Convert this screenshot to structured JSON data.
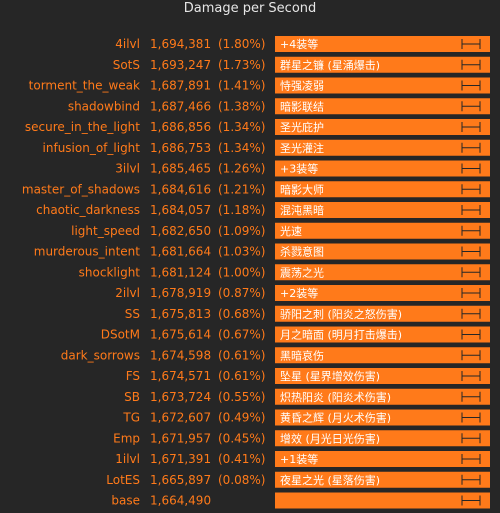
{
  "chart_data": {
    "type": "bar",
    "orientation": "horizontal",
    "title": "Damage per Second",
    "grid": false,
    "legend": "none",
    "colors": {
      "background": "#262626",
      "bar": "#ff7a1a",
      "label": "#ff7a1a",
      "title": "#e6e6e6",
      "bar_text": "#ffffff"
    },
    "rows": [
      {
        "name": "4ilvl",
        "value": 1694381,
        "value_label": "1,694,381",
        "pct_label": "(1.80%)",
        "bar_label": "+4装等"
      },
      {
        "name": "SotS",
        "value": 1693247,
        "value_label": "1,693,247",
        "pct_label": "(1.73%)",
        "bar_label": "群星之镰 (星涌爆击)"
      },
      {
        "name": "torment_the_weak",
        "value": 1687891,
        "value_label": "1,687,891",
        "pct_label": "(1.41%)",
        "bar_label": "恃强凌弱"
      },
      {
        "name": "shadowbind",
        "value": 1687466,
        "value_label": "1,687,466",
        "pct_label": "(1.38%)",
        "bar_label": "暗影联结"
      },
      {
        "name": "secure_in_the_light",
        "value": 1686856,
        "value_label": "1,686,856",
        "pct_label": "(1.34%)",
        "bar_label": "圣光庇护"
      },
      {
        "name": "infusion_of_light",
        "value": 1686753,
        "value_label": "1,686,753",
        "pct_label": "(1.34%)",
        "bar_label": "圣光灌注"
      },
      {
        "name": "3ilvl",
        "value": 1685465,
        "value_label": "1,685,465",
        "pct_label": "(1.26%)",
        "bar_label": "+3装等"
      },
      {
        "name": "master_of_shadows",
        "value": 1684616,
        "value_label": "1,684,616",
        "pct_label": "(1.21%)",
        "bar_label": "暗影大师"
      },
      {
        "name": "chaotic_darkness",
        "value": 1684057,
        "value_label": "1,684,057",
        "pct_label": "(1.18%)",
        "bar_label": "混沌黑暗"
      },
      {
        "name": "light_speed",
        "value": 1682650,
        "value_label": "1,682,650",
        "pct_label": "(1.09%)",
        "bar_label": "光速"
      },
      {
        "name": "murderous_intent",
        "value": 1681664,
        "value_label": "1,681,664",
        "pct_label": "(1.03%)",
        "bar_label": "杀戮意图"
      },
      {
        "name": "shocklight",
        "value": 1681124,
        "value_label": "1,681,124",
        "pct_label": "(1.00%)",
        "bar_label": "震荡之光"
      },
      {
        "name": "2ilvl",
        "value": 1678919,
        "value_label": "1,678,919",
        "pct_label": "(0.87%)",
        "bar_label": "+2装等"
      },
      {
        "name": "SS",
        "value": 1675813,
        "value_label": "1,675,813",
        "pct_label": "(0.68%)",
        "bar_label": "骄阳之刺 (阳炎之怒伤害)"
      },
      {
        "name": "DSotM",
        "value": 1675614,
        "value_label": "1,675,614",
        "pct_label": "(0.67%)",
        "bar_label": "月之暗面 (明月打击爆击)"
      },
      {
        "name": "dark_sorrows",
        "value": 1674598,
        "value_label": "1,674,598",
        "pct_label": "(0.61%)",
        "bar_label": "黑暗哀伤"
      },
      {
        "name": "FS",
        "value": 1674571,
        "value_label": "1,674,571",
        "pct_label": "(0.61%)",
        "bar_label": "坠星 (星界增效伤害)"
      },
      {
        "name": "SB",
        "value": 1673724,
        "value_label": "1,673,724",
        "pct_label": "(0.55%)",
        "bar_label": "炽热阳炎 (阳炎术伤害)"
      },
      {
        "name": "TG",
        "value": 1672607,
        "value_label": "1,672,607",
        "pct_label": "(0.49%)",
        "bar_label": "黄昏之辉 (月火术伤害)"
      },
      {
        "name": "Emp",
        "value": 1671957,
        "value_label": "1,671,957",
        "pct_label": "(0.45%)",
        "bar_label": "增效 (月光日光伤害)"
      },
      {
        "name": "1ilvl",
        "value": 1671391,
        "value_label": "1,671,391",
        "pct_label": "(0.41%)",
        "bar_label": "+1装等"
      },
      {
        "name": "LotES",
        "value": 1665897,
        "value_label": "1,665,897",
        "pct_label": "(0.08%)",
        "bar_label": "夜星之光 (星落伤害)"
      },
      {
        "name": "base",
        "value": 1664490,
        "value_label": "1,664,490",
        "pct_label": "",
        "bar_label": ""
      }
    ]
  }
}
